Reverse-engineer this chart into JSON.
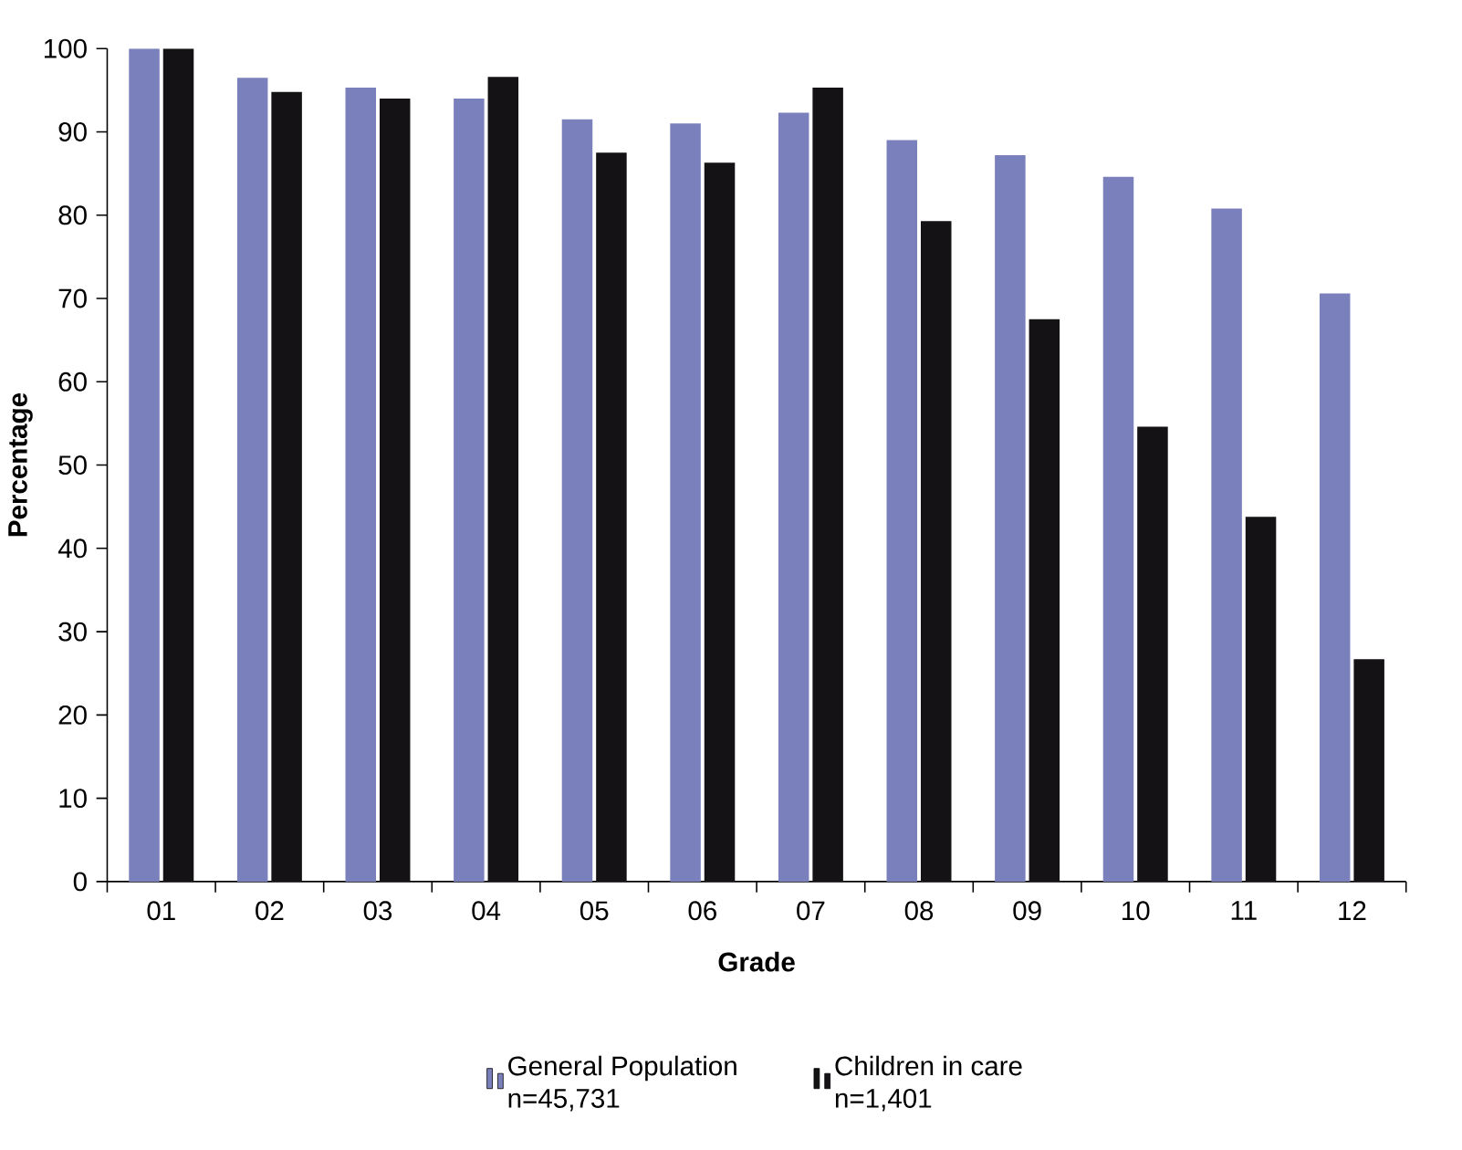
{
  "chart_data": {
    "type": "bar",
    "xlabel": "Grade",
    "ylabel": "Percentage",
    "categories": [
      "01",
      "02",
      "03",
      "04",
      "05",
      "06",
      "07",
      "08",
      "09",
      "10",
      "11",
      "12"
    ],
    "series": [
      {
        "name": "General Population",
        "color": "#7a80bc",
        "values": [
          100,
          96.5,
          95.3,
          94,
          91.5,
          91,
          92.3,
          89,
          87.2,
          84.6,
          80.8,
          70.6
        ]
      },
      {
        "name": "Children in care",
        "color": "#141214",
        "values": [
          100,
          94.8,
          94,
          96.6,
          87.5,
          86.3,
          95.3,
          79.3,
          67.5,
          54.6,
          43.8,
          26.7
        ]
      }
    ],
    "annotations": [
      "n=45,731",
      "n=1,401"
    ],
    "ylim": [
      0,
      100
    ],
    "yticks": [
      0,
      10,
      20,
      30,
      40,
      50,
      60,
      70,
      80,
      90,
      100
    ],
    "grid": false,
    "legend": "bottom"
  }
}
